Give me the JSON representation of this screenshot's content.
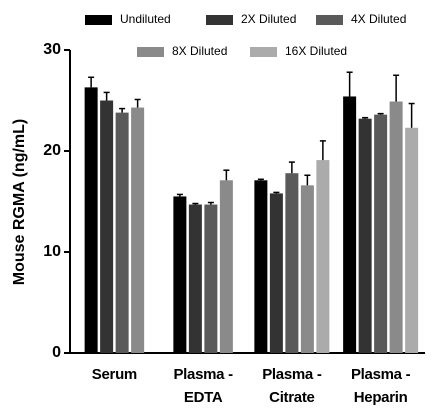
{
  "chart_data": {
    "type": "bar",
    "y_label": "Mouse RGMA (ng/mL)",
    "categories": [
      "Serum",
      "Plasma -\nEDTA",
      "Plasma -\nCitrate",
      "Plasma -\nHeparin"
    ],
    "series": [
      {
        "name": "Undiluted",
        "color": "#000000",
        "values": [
          26.3,
          15.5,
          17.1,
          25.4
        ],
        "errors": [
          1.0,
          0.2,
          0.1,
          2.4
        ]
      },
      {
        "name": "2X Diluted",
        "color": "#333333",
        "values": [
          25.0,
          14.7,
          15.8,
          23.2
        ],
        "errors": [
          0.8,
          0.1,
          0.1,
          0.1
        ]
      },
      {
        "name": "4X Diluted",
        "color": "#5a5a5a",
        "values": [
          23.8,
          14.7,
          17.8,
          23.6
        ],
        "errors": [
          0.4,
          0.2,
          1.1,
          0.1
        ]
      },
      {
        "name": "8X Diluted",
        "color": "#8a8a8a",
        "values": [
          24.3,
          17.1,
          16.6,
          24.9
        ],
        "errors": [
          0.8,
          1.0,
          1.0,
          2.6
        ]
      },
      {
        "name": "16X Diluted",
        "color": "#ababab",
        "values": [
          null,
          null,
          19.1,
          22.3
        ],
        "errors": [
          null,
          null,
          1.9,
          2.4
        ]
      }
    ],
    "ylim": [
      0,
      30
    ],
    "yticks": [
      0,
      10,
      20,
      30
    ],
    "grid": false
  }
}
